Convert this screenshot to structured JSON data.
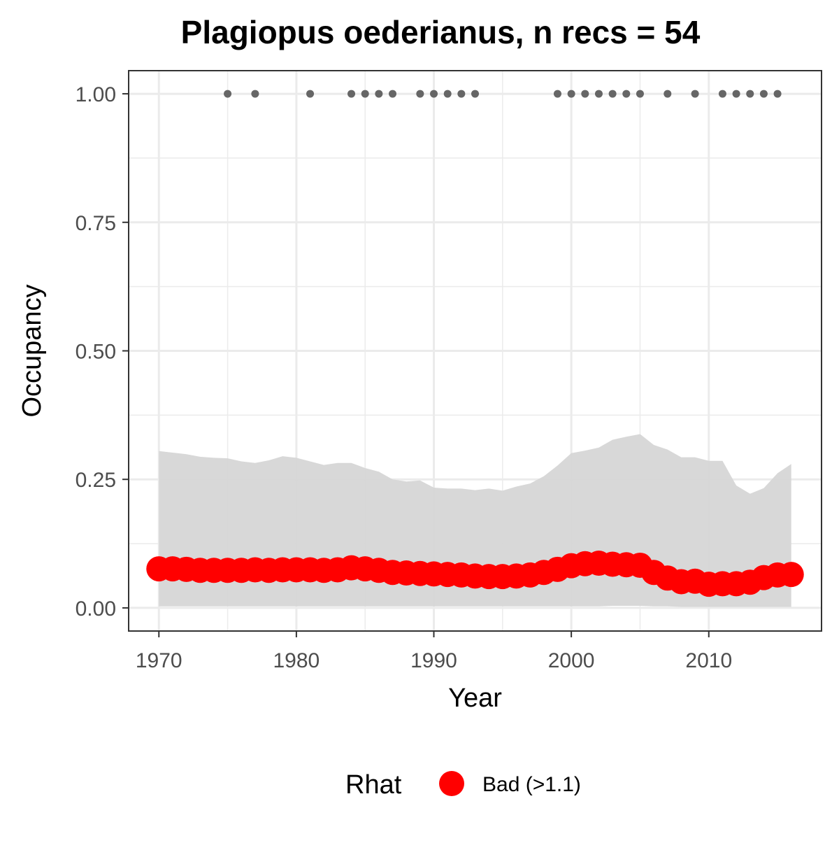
{
  "chart_data": {
    "type": "line",
    "title": "Plagiopus oederianus, n recs = 54",
    "xlabel": "Year",
    "ylabel": "Occupancy",
    "xlim": [
      1967.8,
      2018.2
    ],
    "ylim": [
      -0.045,
      1.045
    ],
    "x_ticks": [
      1970,
      1980,
      1990,
      2000,
      2010
    ],
    "x_tick_labels": [
      "1970",
      "1980",
      "1990",
      "2000",
      "2010"
    ],
    "y_ticks": [
      0,
      0.25,
      0.5,
      0.75,
      1
    ],
    "y_tick_labels": [
      "0.00",
      "0.25",
      "0.50",
      "0.75",
      "1.00"
    ],
    "grid": true,
    "legend": {
      "position": "bottom",
      "title": "Rhat",
      "entries": [
        {
          "label": "Bad (>1.1)",
          "color": "#ff0000"
        }
      ]
    },
    "colors": {
      "mean_point": "#ff0000",
      "ribbon": "#d6d6d6",
      "record_point": "#666666",
      "grid": "#ebebeb",
      "panel_border": "#333333"
    },
    "series": [
      {
        "kind": "ribbon",
        "x": [
          1970,
          1971,
          1972,
          1973,
          1974,
          1975,
          1976,
          1977,
          1978,
          1979,
          1980,
          1981,
          1982,
          1983,
          1984,
          1985,
          1986,
          1987,
          1988,
          1989,
          1990,
          1991,
          1992,
          1993,
          1994,
          1995,
          1996,
          1997,
          1998,
          1999,
          2000,
          2001,
          2002,
          2003,
          2004,
          2005,
          2006,
          2007,
          2008,
          2009,
          2010,
          2011,
          2012,
          2013,
          2014,
          2015,
          2016
        ],
        "lower": [
          0.003,
          0.003,
          0.003,
          0.003,
          0.003,
          0.003,
          0.003,
          0.003,
          0.003,
          0.003,
          0.003,
          0.003,
          0.003,
          0.003,
          0.003,
          0.003,
          0.003,
          0.003,
          0.003,
          0.003,
          0.003,
          0.003,
          0.003,
          0.003,
          0.003,
          0.003,
          0.003,
          0.003,
          0.003,
          0.003,
          0.003,
          0.003,
          0.003,
          0.004,
          0.004,
          0.004,
          0.003,
          0.003,
          0.002,
          0.002,
          0.002,
          0.002,
          0.002,
          0.002,
          0.002,
          0.002,
          0.002
        ],
        "upper": [
          0.305,
          0.302,
          0.299,
          0.294,
          0.292,
          0.291,
          0.285,
          0.282,
          0.287,
          0.295,
          0.292,
          0.285,
          0.278,
          0.282,
          0.282,
          0.272,
          0.265,
          0.25,
          0.246,
          0.248,
          0.234,
          0.232,
          0.232,
          0.229,
          0.232,
          0.228,
          0.236,
          0.242,
          0.256,
          0.277,
          0.301,
          0.306,
          0.312,
          0.327,
          0.333,
          0.338,
          0.317,
          0.308,
          0.293,
          0.293,
          0.286,
          0.286,
          0.238,
          0.222,
          0.233,
          0.262,
          0.28
        ]
      },
      {
        "kind": "points",
        "name": "Bad (>1.1)",
        "x": [
          1970,
          1971,
          1972,
          1973,
          1974,
          1975,
          1976,
          1977,
          1978,
          1979,
          1980,
          1981,
          1982,
          1983,
          1984,
          1985,
          1986,
          1987,
          1988,
          1989,
          1990,
          1991,
          1992,
          1993,
          1994,
          1995,
          1996,
          1997,
          1998,
          1999,
          2000,
          2001,
          2002,
          2003,
          2004,
          2005,
          2006,
          2007,
          2008,
          2009,
          2010,
          2011,
          2012,
          2013,
          2014,
          2015,
          2016
        ],
        "y": [
          0.076,
          0.076,
          0.075,
          0.073,
          0.073,
          0.073,
          0.073,
          0.074,
          0.073,
          0.074,
          0.074,
          0.074,
          0.073,
          0.074,
          0.078,
          0.076,
          0.073,
          0.069,
          0.068,
          0.067,
          0.066,
          0.065,
          0.064,
          0.062,
          0.061,
          0.061,
          0.062,
          0.064,
          0.069,
          0.075,
          0.082,
          0.086,
          0.087,
          0.085,
          0.084,
          0.083,
          0.069,
          0.058,
          0.051,
          0.052,
          0.046,
          0.047,
          0.047,
          0.05,
          0.059,
          0.064,
          0.065
        ]
      },
      {
        "kind": "records",
        "x": [
          1975,
          1977,
          1981,
          1984,
          1985,
          1986,
          1987,
          1989,
          1990,
          1991,
          1992,
          1993,
          1999,
          2000,
          2001,
          2002,
          2003,
          2004,
          2005,
          2007,
          2009,
          2011,
          2012,
          2013,
          2014,
          2015
        ],
        "y": [
          1,
          1,
          1,
          1,
          1,
          1,
          1,
          1,
          1,
          1,
          1,
          1,
          1,
          1,
          1,
          1,
          1,
          1,
          1,
          1,
          1,
          1,
          1,
          1,
          1,
          1
        ]
      }
    ]
  }
}
